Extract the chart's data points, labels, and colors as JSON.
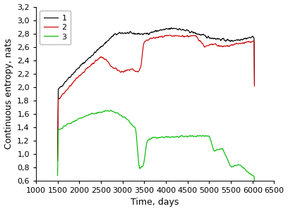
{
  "title": "",
  "xlabel": "Time, days",
  "ylabel": "Continuous entropy, nats",
  "xlim": [
    1000,
    6500
  ],
  "ylim": [
    0.6,
    3.2
  ],
  "xticks": [
    1000,
    1500,
    2000,
    2500,
    3000,
    3500,
    4000,
    4500,
    5000,
    5500,
    6000,
    6500
  ],
  "yticks": [
    0.6,
    0.8,
    1.0,
    1.2,
    1.4,
    1.6,
    1.8,
    2.0,
    2.2,
    2.4,
    2.6,
    2.8,
    3.0,
    3.2
  ],
  "line1_color": "#000000",
  "line2_color": "#cc0000",
  "line3_color": "#00bb00",
  "legend_labels": [
    "1",
    "2",
    "3"
  ],
  "background_color": "#ffffff",
  "figsize": [
    4.08,
    3.0
  ],
  "dpi": 100
}
